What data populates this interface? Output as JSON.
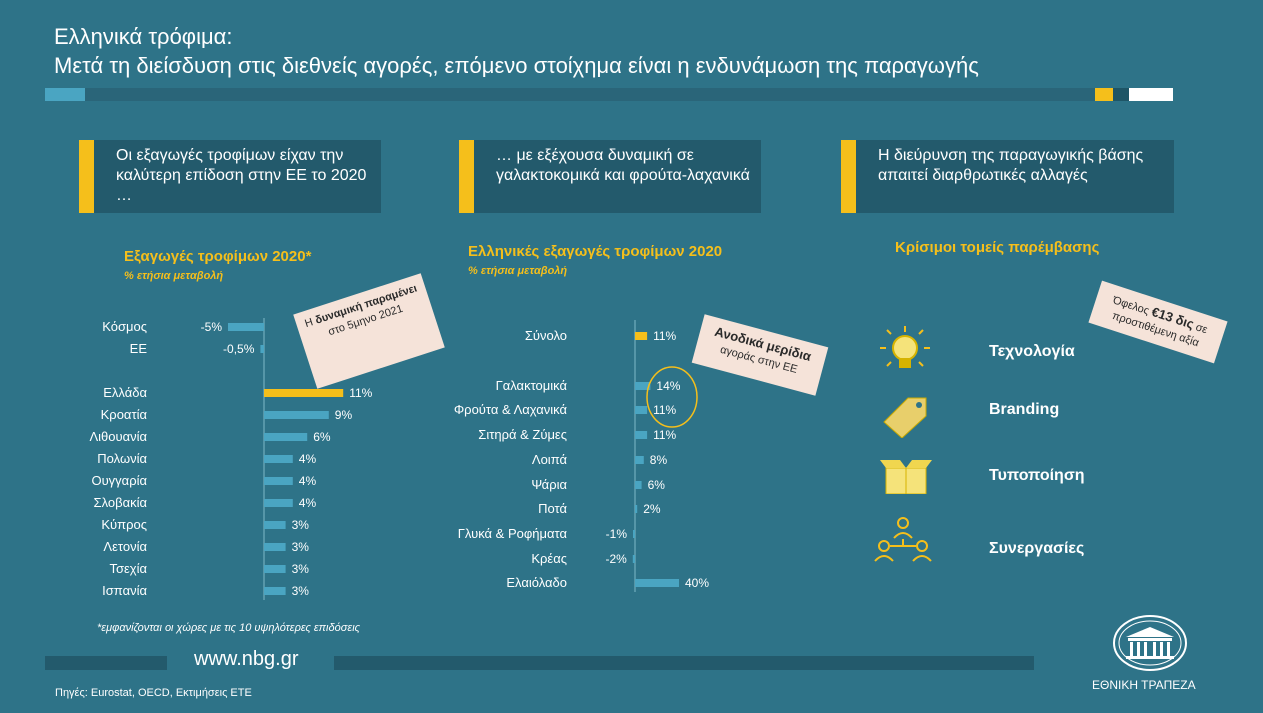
{
  "header": {
    "title_line1": "Ελληνικά τρόφιμα:",
    "title_line2": "Μετά τη διείσδυση στις διεθνείς αγορές, επόμενο στοίχημα είναι η ενδυνάμωση της παραγωγής"
  },
  "boxes": [
    {
      "text": "Οι εξαγωγές τροφίμων είχαν την καλύτερη επίδοση στην ΕΕ το 2020 …"
    },
    {
      "text": "… με εξέχουσα δυναμική σε γαλακτοκομικά και φρούτα-λαχανικά"
    },
    {
      "text": "Η διεύρυνση της παραγωγικής βάσης απαιτεί διαρθρωτικές αλλαγές"
    }
  ],
  "chart_data": [
    {
      "type": "bar",
      "orientation": "horizontal",
      "title": "Εξαγωγές τροφίμων 2020*",
      "subtitle": "% ετήσια μεταβολή",
      "categories": [
        "Κόσμος",
        "ΕΕ",
        "Ελλάδα",
        "Κροατία",
        "Λιθουανία",
        "Πολωνία",
        "Ουγγαρία",
        "Σλοβακία",
        "Κύπρος",
        "Λετονία",
        "Τσεχία",
        "Ισπανία"
      ],
      "values": [
        -5,
        -0.5,
        11,
        9,
        6,
        4,
        4,
        4,
        3,
        3,
        3,
        3
      ],
      "labels": [
        "-5%",
        "-0,5%",
        "11%",
        "9%",
        "6%",
        "4%",
        "4%",
        "4%",
        "3%",
        "3%",
        "3%",
        "3%"
      ],
      "highlight": "Ελλάδα",
      "highlight_color": "#f5bf1b",
      "bar_color": "#4aa5c2",
      "note": "*εμφανίζονται οι χώρες με τις 10 υψηλότερες επιδόσεις"
    },
    {
      "type": "bar",
      "orientation": "horizontal",
      "title": "Ελληνικές εξαγωγές τροφίμων 2020",
      "subtitle": "% ετήσια μεταβολή",
      "categories": [
        "Σύνολο",
        "Γαλακτομικά",
        "Φρούτα & Λαχανικά",
        "Σιτηρά & Ζύμες",
        "Λοιπά",
        "Ψάρια",
        "Ποτά",
        "Γλυκά & Ροφήματα",
        "Κρέας",
        "Ελαιόλαδο"
      ],
      "values": [
        11,
        14,
        11,
        11,
        8,
        6,
        2,
        -1,
        -2,
        40
      ],
      "labels": [
        "11%",
        "14%",
        "11%",
        "11%",
        "8%",
        "6%",
        "2%",
        "-1%",
        "-2%",
        "40%"
      ],
      "highlight": "Σύνολο",
      "highlight_color": "#f5bf1b",
      "bar_color": "#4aa5c2"
    }
  ],
  "callouts": {
    "c1": {
      "part1": "Η ",
      "bold": "δυναμική παραμένει",
      "part2": " στο 5μηνο 2021"
    },
    "c2": {
      "bold": "Ανοδικά μερίδια",
      "part2": "αγοράς στην ΕΕ"
    },
    "c3": {
      "part1": "Όφελος ",
      "bold": "€13 δις",
      "part2": " σε προστιθέμενη αξία"
    }
  },
  "sectors": {
    "title": "Κρίσιμοι τομείς παρέμβασης",
    "items": [
      {
        "label": "Τεχνολογία",
        "icon": "lightbulb-icon"
      },
      {
        "label": "Branding",
        "icon": "tag-icon"
      },
      {
        "label": "Τυποποίηση",
        "icon": "box-icon"
      },
      {
        "label": "Συνεργασίες",
        "icon": "network-icon"
      }
    ]
  },
  "footer": {
    "url": "www.nbg.gr",
    "sources": "Πηγές: Eurostat, OECD, Εκτιμήσεις ΕΤΕ",
    "brand": "ΕΘΝΙΚΗ ΤΡΑΠΕΖΑ"
  },
  "colors": {
    "background": "#2e7388",
    "accent": "#f5bf1b",
    "bar": "#4aa5c2",
    "box": "#235a6c"
  }
}
